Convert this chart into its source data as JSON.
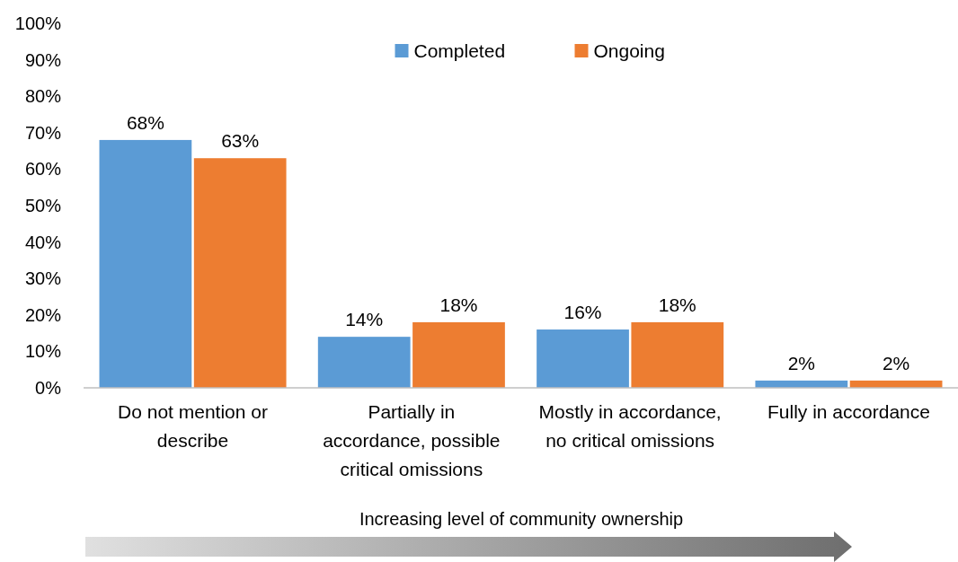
{
  "chart_data": {
    "type": "bar",
    "xlabel": "Increasing level of community ownership",
    "categories": [
      "Do not mention or describe",
      "Partially in accordance, possible critical omissions",
      "Mostly in accordance, no critical omissions",
      "Fully in accordance"
    ],
    "series": [
      {
        "name": "Completed",
        "color": "#5b9bd5",
        "values": [
          68,
          14,
          16,
          2
        ],
        "value_labels": [
          "68%",
          "14%",
          "16%",
          "2%"
        ]
      },
      {
        "name": "Ongoing",
        "color": "#ed7d31",
        "values": [
          63,
          18,
          18,
          2
        ],
        "value_labels": [
          "63%",
          "18%",
          "18%",
          "2%"
        ]
      }
    ],
    "ylim": [
      0,
      100
    ],
    "yticks": [
      {
        "value": 0,
        "label": "0%"
      },
      {
        "value": 10,
        "label": "10%"
      },
      {
        "value": 20,
        "label": "20%"
      },
      {
        "value": 30,
        "label": "30%"
      },
      {
        "value": 40,
        "label": "40%"
      },
      {
        "value": 50,
        "label": "50%"
      },
      {
        "value": 60,
        "label": "60%"
      },
      {
        "value": 70,
        "label": "70%"
      },
      {
        "value": 80,
        "label": "80%"
      },
      {
        "value": 90,
        "label": "90%"
      },
      {
        "value": 100,
        "label": "100%"
      }
    ],
    "grid": false,
    "legend": "top"
  }
}
